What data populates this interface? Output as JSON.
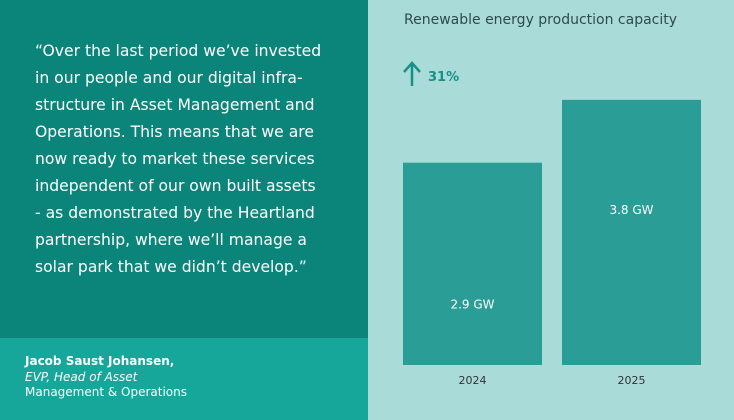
{
  "quote": {
    "lines": [
      "“Over the last period we’ve invested",
      "in our people and our digital infra-",
      "structure in Asset Management and",
      "Operations. This means that we are",
      "now ready to market these services",
      "independent of our own built assets",
      "- as demonstrated by the Heartland",
      "partnership, where we’ll manage a",
      "solar park that we didn’t develop.”"
    ]
  },
  "attribution": {
    "name": "Jacob Saust Johansen,",
    "role_line1": "EVP, Head of Asset",
    "role_line2": "Management & Operations"
  },
  "colors": {
    "left_panel": "#0b857a",
    "attribution_panel": "#17a69a",
    "right_panel": "#a9dcd9",
    "bar": "#2a9d96",
    "accent": "#178f86"
  },
  "change": {
    "icon": "arrow-up-icon",
    "label": "31%"
  },
  "chart_data": {
    "type": "bar",
    "title": "Renewable energy production capacity",
    "categories": [
      "2024",
      "2025"
    ],
    "values": [
      2.9,
      3.8
    ],
    "value_labels": [
      "2.9 GW",
      "3.8 GW"
    ],
    "ylim": [
      0,
      4.3
    ],
    "grid": false,
    "legend": "none"
  }
}
